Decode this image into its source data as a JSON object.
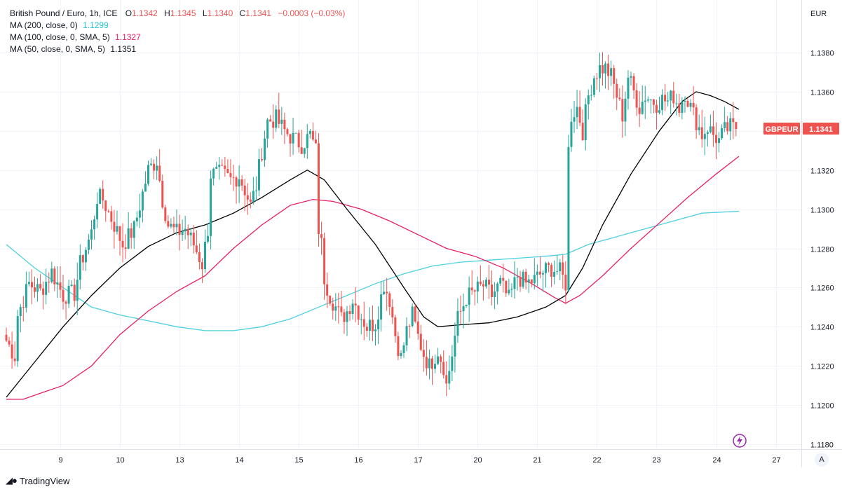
{
  "legend": {
    "symbol": "British Pound / Euro, 1h, ICE",
    "open_label": "O",
    "open": "1.1342",
    "high_label": "H",
    "high": "1.1345",
    "low_label": "L",
    "low": "1.1340",
    "close_label": "C",
    "close": "1.1341",
    "change": "−0.0003 (−0.03%)",
    "ma200_label": "MA (200, close, 0)",
    "ma200_value": "1.1299",
    "ma100_label": "MA (100, close, 0, SMA, 5)",
    "ma100_value": "1.1327",
    "ma50_label": "MA (50, close, 0, SMA, 5)",
    "ma50_value": "1.1351"
  },
  "price_axis": {
    "currency": "EUR"
  },
  "price_badge": {
    "ticker": "GBPEUR",
    "value": "1.1341"
  },
  "footer": {
    "brand": "TradingView"
  },
  "scale_mode": "A",
  "colors": {
    "up": "#26a69a",
    "down": "#ef5350",
    "ma200": "#4dd0e1",
    "ma100": "#e91e63",
    "ma50": "#000000",
    "grid": "#f0f3fa",
    "axis_text": "#131722",
    "badge": "#ef5350"
  },
  "chart_data": {
    "type": "candlestick",
    "title": "British Pound / Euro, 1h, ICE",
    "y_range": [
      1.1175,
      1.1395
    ],
    "y_ticks": [
      1.118,
      1.12,
      1.122,
      1.124,
      1.126,
      1.128,
      1.13,
      1.132,
      1.134,
      1.136,
      1.138
    ],
    "y_tick_labels": [
      "1.1180",
      "1.1200",
      "1.1220",
      "1.1240",
      "1.1260",
      "1.1280",
      "1.1300",
      "1.1320",
      "1.1340",
      "1.1360",
      "1.1380"
    ],
    "x_range": [
      0,
      262
    ],
    "x_ticks": [
      {
        "label": "9",
        "index": 19
      },
      {
        "label": "10",
        "index": 40
      },
      {
        "label": "13",
        "index": 61
      },
      {
        "label": "14",
        "index": 82
      },
      {
        "label": "15",
        "index": 103
      },
      {
        "label": "16",
        "index": 124
      },
      {
        "label": "17",
        "index": 145
      },
      {
        "label": "20",
        "index": 166
      },
      {
        "label": "21",
        "index": 187
      },
      {
        "label": "22",
        "index": 208
      },
      {
        "label": "23",
        "index": 229
      },
      {
        "label": "24",
        "index": 250
      },
      {
        "label": "27",
        "index": 271
      }
    ],
    "candle_anchors": [
      [
        0,
        1.1233
      ],
      [
        3,
        1.1225
      ],
      [
        4,
        1.1246
      ],
      [
        8,
        1.1262
      ],
      [
        12,
        1.1258
      ],
      [
        16,
        1.1268
      ],
      [
        20,
        1.1256
      ],
      [
        24,
        1.1257
      ],
      [
        26,
        1.1272
      ],
      [
        30,
        1.1288
      ],
      [
        32,
        1.1306
      ],
      [
        34,
        1.1305
      ],
      [
        38,
        1.1292
      ],
      [
        41,
        1.1282
      ],
      [
        45,
        1.129
      ],
      [
        48,
        1.1308
      ],
      [
        50,
        1.132
      ],
      [
        53,
        1.1325
      ],
      [
        55,
        1.1305
      ],
      [
        57,
        1.1292
      ],
      [
        60,
        1.1288
      ],
      [
        63,
        1.129
      ],
      [
        66,
        1.1282
      ],
      [
        69,
        1.1272
      ],
      [
        71,
        1.129
      ],
      [
        72,
        1.1318
      ],
      [
        76,
        1.1318
      ],
      [
        79,
        1.1315
      ],
      [
        82,
        1.1317
      ],
      [
        84,
        1.131
      ],
      [
        86,
        1.1302
      ],
      [
        88,
        1.1312
      ],
      [
        90,
        1.133
      ],
      [
        92,
        1.1345
      ],
      [
        95,
        1.1346
      ],
      [
        98,
        1.134
      ],
      [
        101,
        1.1336
      ],
      [
        104,
        1.1333
      ],
      [
        107,
        1.1338
      ],
      [
        109,
        1.133
      ],
      [
        110,
        1.129
      ],
      [
        111,
        1.1282
      ],
      [
        112,
        1.1265
      ],
      [
        114,
        1.1256
      ],
      [
        116,
        1.125
      ],
      [
        118,
        1.1244
      ],
      [
        120,
        1.1248
      ],
      [
        122,
        1.1254
      ],
      [
        124,
        1.1248
      ],
      [
        127,
        1.124
      ],
      [
        130,
        1.1242
      ],
      [
        133,
        1.1262
      ],
      [
        135,
        1.1254
      ],
      [
        137,
        1.1236
      ],
      [
        139,
        1.1224
      ],
      [
        141,
        1.1238
      ],
      [
        143,
        1.1246
      ],
      [
        145,
        1.1235
      ],
      [
        147,
        1.1226
      ],
      [
        149,
        1.122
      ],
      [
        152,
        1.1228
      ],
      [
        154,
        1.122
      ],
      [
        155,
        1.121
      ],
      [
        157,
        1.1226
      ],
      [
        159,
        1.1244
      ],
      [
        162,
        1.1255
      ],
      [
        165,
        1.1258
      ],
      [
        168,
        1.1261
      ],
      [
        171,
        1.1256
      ],
      [
        174,
        1.1262
      ],
      [
        177,
        1.1254
      ],
      [
        180,
        1.1266
      ],
      [
        183,
        1.1262
      ],
      [
        186,
        1.1264
      ],
      [
        189,
        1.1268
      ],
      [
        192,
        1.127
      ],
      [
        195,
        1.1268
      ],
      [
        197,
        1.1262
      ],
      [
        198,
        1.133
      ],
      [
        199,
        1.1348
      ],
      [
        201,
        1.1352
      ],
      [
        203,
        1.134
      ],
      [
        205,
        1.1358
      ],
      [
        207,
        1.1368
      ],
      [
        209,
        1.1372
      ],
      [
        211,
        1.1372
      ],
      [
        213,
        1.1368
      ],
      [
        215,
        1.1358
      ],
      [
        217,
        1.1348
      ],
      [
        219,
        1.1368
      ],
      [
        221,
        1.136
      ],
      [
        223,
        1.1352
      ],
      [
        225,
        1.1358
      ],
      [
        227,
        1.1356
      ],
      [
        229,
        1.1354
      ],
      [
        231,
        1.1356
      ],
      [
        233,
        1.1355
      ],
      [
        235,
        1.1358
      ],
      [
        237,
        1.1352
      ],
      [
        239,
        1.136
      ],
      [
        241,
        1.1352
      ],
      [
        243,
        1.1345
      ],
      [
        245,
        1.1338
      ],
      [
        247,
        1.1342
      ],
      [
        249,
        1.1338
      ],
      [
        251,
        1.1335
      ],
      [
        253,
        1.134
      ],
      [
        255,
        1.1342
      ],
      [
        257,
        1.1341
      ]
    ],
    "series": [
      {
        "name": "MA (200, close, 0)",
        "value": 1.1299,
        "points": [
          [
            0,
            1.1282
          ],
          [
            10,
            1.127
          ],
          [
            20,
            1.126
          ],
          [
            30,
            1.125
          ],
          [
            40,
            1.1246
          ],
          [
            50,
            1.1243
          ],
          [
            60,
            1.124
          ],
          [
            70,
            1.1238
          ],
          [
            80,
            1.1238
          ],
          [
            90,
            1.124
          ],
          [
            100,
            1.1244
          ],
          [
            110,
            1.125
          ],
          [
            120,
            1.1256
          ],
          [
            130,
            1.1262
          ],
          [
            140,
            1.1267
          ],
          [
            150,
            1.1271
          ],
          [
            160,
            1.1273
          ],
          [
            170,
            1.1274
          ],
          [
            180,
            1.1275
          ],
          [
            190,
            1.1276
          ],
          [
            197,
            1.1277
          ],
          [
            205,
            1.1282
          ],
          [
            215,
            1.1286
          ],
          [
            225,
            1.129
          ],
          [
            235,
            1.1294
          ],
          [
            245,
            1.1298
          ],
          [
            258,
            1.1299
          ]
        ]
      },
      {
        "name": "MA (100, close, 0, SMA, 5)",
        "value": 1.1327,
        "points": [
          [
            0,
            1.1203
          ],
          [
            6,
            1.1203
          ],
          [
            12,
            1.1206
          ],
          [
            20,
            1.121
          ],
          [
            30,
            1.122
          ],
          [
            40,
            1.1236
          ],
          [
            50,
            1.1248
          ],
          [
            60,
            1.1258
          ],
          [
            70,
            1.1266
          ],
          [
            80,
            1.128
          ],
          [
            90,
            1.1292
          ],
          [
            100,
            1.1302
          ],
          [
            108,
            1.1305
          ],
          [
            115,
            1.1304
          ],
          [
            125,
            1.13
          ],
          [
            135,
            1.1294
          ],
          [
            145,
            1.1287
          ],
          [
            155,
            1.128
          ],
          [
            165,
            1.1276
          ],
          [
            175,
            1.127
          ],
          [
            185,
            1.1262
          ],
          [
            193,
            1.1255
          ],
          [
            197,
            1.1252
          ],
          [
            202,
            1.1256
          ],
          [
            210,
            1.1266
          ],
          [
            220,
            1.128
          ],
          [
            230,
            1.1293
          ],
          [
            240,
            1.1306
          ],
          [
            250,
            1.1318
          ],
          [
            258,
            1.1327
          ]
        ]
      },
      {
        "name": "MA (50, close, 0, SMA, 5)",
        "value": 1.1351,
        "points": [
          [
            0,
            1.1204
          ],
          [
            10,
            1.1222
          ],
          [
            20,
            1.124
          ],
          [
            30,
            1.1256
          ],
          [
            40,
            1.127
          ],
          [
            50,
            1.1281
          ],
          [
            60,
            1.1288
          ],
          [
            70,
            1.1292
          ],
          [
            80,
            1.1298
          ],
          [
            90,
            1.1306
          ],
          [
            100,
            1.1315
          ],
          [
            106,
            1.132
          ],
          [
            112,
            1.1315
          ],
          [
            120,
            1.13
          ],
          [
            130,
            1.1282
          ],
          [
            140,
            1.126
          ],
          [
            147,
            1.1245
          ],
          [
            152,
            1.124
          ],
          [
            160,
            1.1241
          ],
          [
            170,
            1.1242
          ],
          [
            180,
            1.1245
          ],
          [
            190,
            1.125
          ],
          [
            197,
            1.1256
          ],
          [
            203,
            1.127
          ],
          [
            210,
            1.1292
          ],
          [
            220,
            1.1318
          ],
          [
            230,
            1.134
          ],
          [
            238,
            1.1355
          ],
          [
            243,
            1.136
          ],
          [
            248,
            1.1358
          ],
          [
            253,
            1.1355
          ],
          [
            258,
            1.1351
          ]
        ]
      }
    ]
  }
}
